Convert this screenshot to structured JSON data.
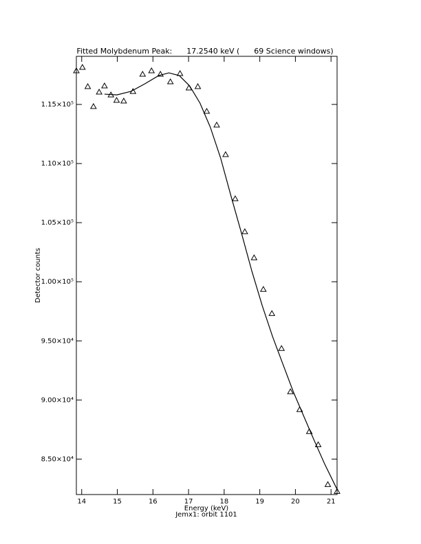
{
  "chart_data": {
    "type": "scatter",
    "title": "Fitted Molybdenum Peak:      17.2540 keV (      69 Science windows)",
    "x_label": "Energy (keV)",
    "subtitle": "Jemx1: orbit 1101",
    "y_label": "Detector counts",
    "xlim": [
      13.85,
      21.17
    ],
    "xticks": [
      14,
      15,
      16,
      17,
      18,
      19,
      20,
      21
    ],
    "ylim": [
      82000,
      119070
    ],
    "yticks": [
      {
        "value": 85000,
        "label": "8.50×10⁴"
      },
      {
        "value": 90000,
        "label": "9.00×10⁴"
      },
      {
        "value": 95000,
        "label": "9.50×10⁴"
      },
      {
        "value": 100000,
        "label": "1.00×10⁵"
      },
      {
        "value": 105000,
        "label": "1.05×10⁵"
      },
      {
        "value": 110000,
        "label": "1.10×10⁵"
      },
      {
        "value": 115000,
        "label": "1.15×10⁵"
      }
    ],
    "series": [
      {
        "type": "scatter",
        "marker": "triangle",
        "color": "#000000",
        "x": [
          13.85,
          14.02,
          14.17,
          14.33,
          14.49,
          14.64,
          14.82,
          14.98,
          15.18,
          15.44,
          15.71,
          15.96,
          16.21,
          16.49,
          16.76,
          17.01,
          17.26,
          17.51,
          17.79,
          18.04,
          18.31,
          18.58,
          18.84,
          19.1,
          19.34,
          19.61,
          19.86,
          20.12,
          20.39,
          20.64,
          20.91,
          21.17
        ],
        "values": [
          117850,
          118140,
          116510,
          114830,
          116050,
          116570,
          115810,
          115350,
          115290,
          116100,
          117560,
          117850,
          117560,
          116920,
          117620,
          116400,
          116510,
          114420,
          113260,
          110760,
          107030,
          104240,
          102030,
          99360,
          97320,
          94360,
          90700,
          89190,
          87330,
          86220,
          82850,
          82270
        ]
      },
      {
        "type": "line",
        "color": "#000000",
        "x": [
          14.64,
          14.99,
          15.38,
          15.77,
          16.16,
          16.45,
          16.74,
          17.03,
          17.32,
          17.61,
          17.9,
          18.19,
          18.49,
          18.78,
          19.07,
          19.36,
          19.65,
          19.94,
          20.23,
          20.52,
          20.82,
          21.17
        ],
        "values": [
          115870,
          115810,
          116100,
          116740,
          117440,
          117670,
          117440,
          116570,
          115120,
          113080,
          110470,
          107270,
          104070,
          100870,
          97970,
          95350,
          93020,
          90700,
          88660,
          86630,
          84590,
          82440
        ]
      }
    ]
  }
}
